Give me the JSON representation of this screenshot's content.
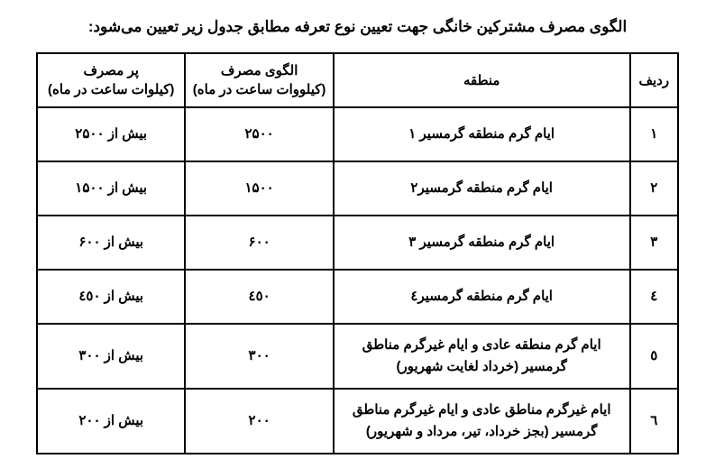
{
  "title": "الگوی مصرف مشترکین خانگی جهت تعیین نوع تعرفه مطابق جدول زیر تعیین می‌شود:",
  "headers": {
    "row_num": "ردیف",
    "region": "منطقه",
    "pattern_line1": "الگوی مصرف",
    "pattern_line2": "(کیلووات ساعت در ماه)",
    "high_line1": "پر مصرف",
    "high_line2": "(کیلوات ساعت در ماه)"
  },
  "rows": [
    {
      "num": "۱",
      "region": "ایام گرم منطقه گرمسیر ۱",
      "pattern": "۲۵۰۰",
      "high": "بیش از ۲۵۰۰"
    },
    {
      "num": "۲",
      "region": "ایام گرم منطقه گرمسیر۲",
      "pattern": "۱۵۰۰",
      "high": "بیش از ۱۵۰۰"
    },
    {
      "num": "۳",
      "region": "ایام گرم منطقه گرمسیر ۳",
      "pattern": "۶۰۰",
      "high": "بیش از ۶۰۰"
    },
    {
      "num": "٤",
      "region": "ایام گرم منطقه گرمسیر٤",
      "pattern": "٤٥٠",
      "high": "بیش از ٤٥٠"
    },
    {
      "num": "٥",
      "region": "ایام گرم منطقه عادی و ایام غیرگرم مناطق گرمسیر (خرداد لغایت شهریور)",
      "pattern": "۳۰۰",
      "high": "بیش از ۳۰۰"
    },
    {
      "num": "٦",
      "region": "ایام غیرگرم مناطق عادی و ایام غیرگرم مناطق گرمسیر (بجز خرداد، تیر، مرداد و شهریور)",
      "pattern": "۲۰۰",
      "high": "بیش از ۲۰۰"
    }
  ]
}
